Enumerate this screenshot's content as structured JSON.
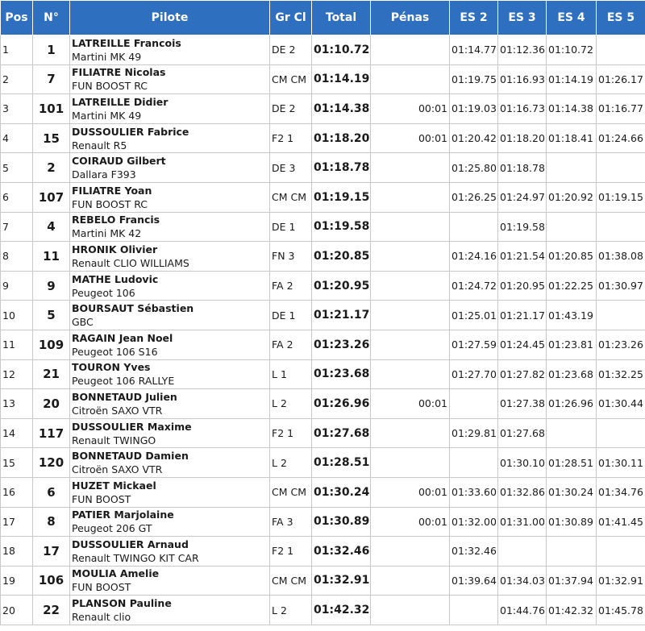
{
  "table": {
    "headers": [
      "Pos",
      "N°",
      "Pilote",
      "Gr Cl",
      "Total",
      "Pénas",
      "ES 2",
      "ES 3",
      "ES 4",
      "ES 5"
    ],
    "rows": [
      {
        "pos": "1",
        "num": "1",
        "name": "LATREILLE Francois",
        "car": "Martini MK 49",
        "grcl": "DE 2",
        "total": "01:10.72",
        "penas": "",
        "es2": "01:14.77",
        "es3": "01:12.36",
        "es4": "01:10.72",
        "es5": ""
      },
      {
        "pos": "2",
        "num": "7",
        "name": "FILIATRE Nicolas",
        "car": "FUN BOOST RC",
        "grcl": "CM CM",
        "total": "01:14.19",
        "penas": "",
        "es2": "01:19.75",
        "es3": "01:16.93",
        "es4": "01:14.19",
        "es5": "01:26.17"
      },
      {
        "pos": "3",
        "num": "101",
        "name": "LATREILLE Didier",
        "car": "Martini MK 49",
        "grcl": "DE 2",
        "total": "01:14.38",
        "penas": "00:01",
        "es2": "01:19.03",
        "es3": "01:16.73",
        "es4": "01:14.38",
        "es5": "01:16.77"
      },
      {
        "pos": "4",
        "num": "15",
        "name": "DUSSOULIER Fabrice",
        "car": "Renault R5",
        "grcl": "F2 1",
        "total": "01:18.20",
        "penas": "00:01",
        "es2": "01:20.42",
        "es3": "01:18.20",
        "es4": "01:18.41",
        "es5": "01:24.66"
      },
      {
        "pos": "5",
        "num": "2",
        "name": "COIRAUD Gilbert",
        "car": "Dallara F393",
        "grcl": "DE 3",
        "total": "01:18.78",
        "penas": "",
        "es2": "01:25.80",
        "es3": "01:18.78",
        "es4": "",
        "es5": ""
      },
      {
        "pos": "6",
        "num": "107",
        "name": "FILIATRE Yoan",
        "car": "FUN BOOST RC",
        "grcl": "CM CM",
        "total": "01:19.15",
        "penas": "",
        "es2": "01:26.25",
        "es3": "01:24.97",
        "es4": "01:20.92",
        "es5": "01:19.15"
      },
      {
        "pos": "7",
        "num": "4",
        "name": "REBELO Francis",
        "car": "Martini MK 42",
        "grcl": "DE 1",
        "total": "01:19.58",
        "penas": "",
        "es2": "",
        "es3": "01:19.58",
        "es4": "",
        "es5": ""
      },
      {
        "pos": "8",
        "num": "11",
        "name": "HRONIK Olivier",
        "car": "Renault CLIO WILLIAMS",
        "grcl": "FN 3",
        "total": "01:20.85",
        "penas": "",
        "es2": "01:24.16",
        "es3": "01:21.54",
        "es4": "01:20.85",
        "es5": "01:38.08"
      },
      {
        "pos": "9",
        "num": "9",
        "name": "MATHE Ludovic",
        "car": "Peugeot 106",
        "grcl": "FA 2",
        "total": "01:20.95",
        "penas": "",
        "es2": "01:24.72",
        "es3": "01:20.95",
        "es4": "01:22.25",
        "es5": "01:30.97"
      },
      {
        "pos": "10",
        "num": "5",
        "name": "BOURSAUT Sébastien",
        "car": "GBC",
        "grcl": "DE 1",
        "total": "01:21.17",
        "penas": "",
        "es2": "01:25.01",
        "es3": "01:21.17",
        "es4": "01:43.19",
        "es5": ""
      },
      {
        "pos": "11",
        "num": "109",
        "name": "RAGAIN Jean Noel",
        "car": "Peugeot 106 S16",
        "grcl": "FA 2",
        "total": "01:23.26",
        "penas": "",
        "es2": "01:27.59",
        "es3": "01:24.45",
        "es4": "01:23.81",
        "es5": "01:23.26"
      },
      {
        "pos": "12",
        "num": "21",
        "name": "TOURON Yves",
        "car": "Peugeot 106 RALLYE",
        "grcl": "L 1",
        "total": "01:23.68",
        "penas": "",
        "es2": "01:27.70",
        "es3": "01:27.82",
        "es4": "01:23.68",
        "es5": "01:32.25"
      },
      {
        "pos": "13",
        "num": "20",
        "name": "BONNETAUD Julien",
        "car": "Citroën SAXO VTR",
        "grcl": "L 2",
        "total": "01:26.96",
        "penas": "00:01",
        "es2": "",
        "es3": "01:27.38",
        "es4": "01:26.96",
        "es5": "01:30.44"
      },
      {
        "pos": "14",
        "num": "117",
        "name": "DUSSOULIER Maxime",
        "car": "Renault TWINGO",
        "grcl": "F2 1",
        "total": "01:27.68",
        "penas": "",
        "es2": "01:29.81",
        "es3": "01:27.68",
        "es4": "",
        "es5": ""
      },
      {
        "pos": "15",
        "num": "120",
        "name": "BONNETAUD Damien",
        "car": "Citroën SAXO VTR",
        "grcl": "L 2",
        "total": "01:28.51",
        "penas": "",
        "es2": "",
        "es3": "01:30.10",
        "es4": "01:28.51",
        "es5": "01:30.11"
      },
      {
        "pos": "16",
        "num": "6",
        "name": "HUZET Mickael",
        "car": "FUN BOOST",
        "grcl": "CM CM",
        "total": "01:30.24",
        "penas": "00:01",
        "es2": "01:33.60",
        "es3": "01:32.86",
        "es4": "01:30.24",
        "es5": "01:34.76"
      },
      {
        "pos": "17",
        "num": "8",
        "name": "PATIER Marjolaine",
        "car": "Peugeot 206 GT",
        "grcl": "FA 3",
        "total": "01:30.89",
        "penas": "00:01",
        "es2": "01:32.00",
        "es3": "01:31.00",
        "es4": "01:30.89",
        "es5": "01:41.45"
      },
      {
        "pos": "18",
        "num": "17",
        "name": "DUSSOULIER Arnaud",
        "car": "Renault TWINGO KIT CAR",
        "grcl": "F2 1",
        "total": "01:32.46",
        "penas": "",
        "es2": "01:32.46",
        "es3": "",
        "es4": "",
        "es5": ""
      },
      {
        "pos": "19",
        "num": "106",
        "name": "MOULIA Amelie",
        "car": "FUN BOOST",
        "grcl": "CM CM",
        "total": "01:32.91",
        "penas": "",
        "es2": "01:39.64",
        "es3": "01:34.03",
        "es4": "01:37.94",
        "es5": "01:32.91"
      },
      {
        "pos": "20",
        "num": "22",
        "name": "PLANSON Pauline",
        "car": "Renault clio",
        "grcl": "L 2",
        "total": "01:42.32",
        "penas": "",
        "es2": "",
        "es3": "01:44.76",
        "es4": "01:42.32",
        "es5": "01:45.78"
      }
    ]
  },
  "colors": {
    "header_bg": "#2f6fc0",
    "header_text": "#ffffff",
    "grid": "#c8c8c8"
  }
}
